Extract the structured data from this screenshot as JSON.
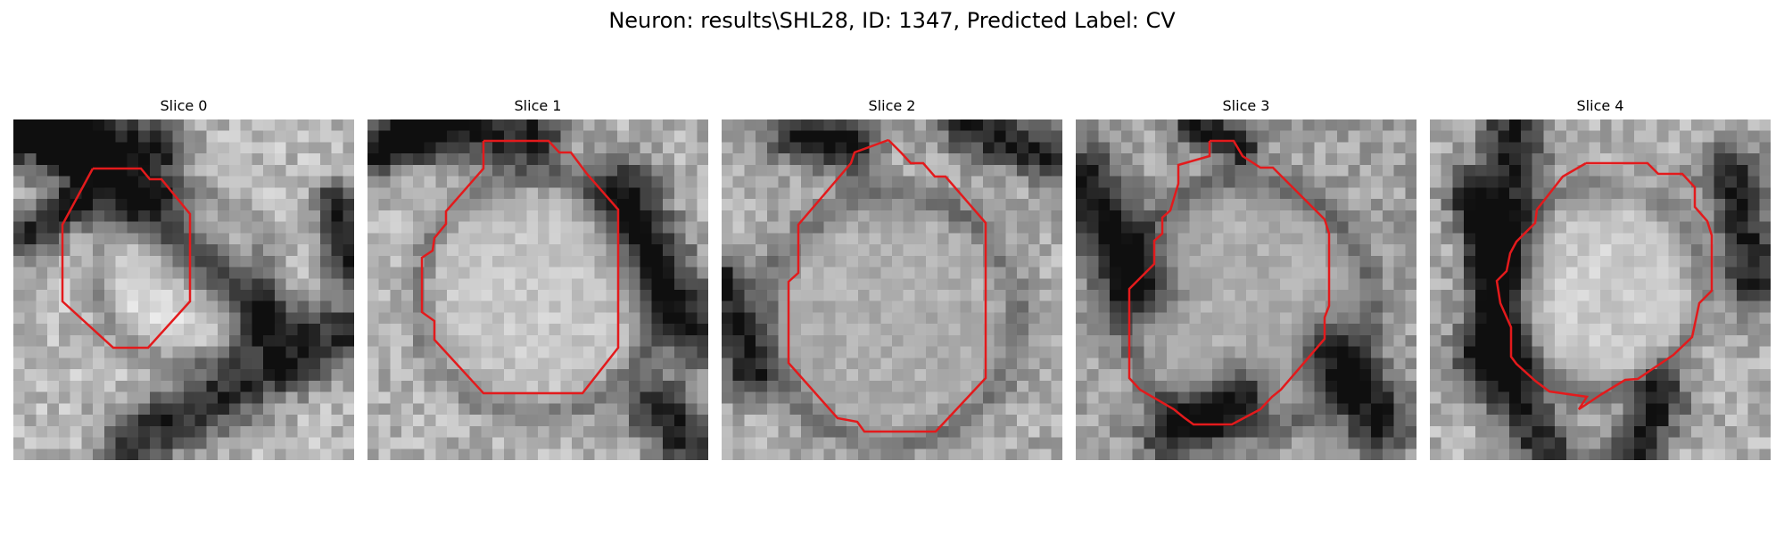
{
  "figure": {
    "title": "Neuron: results\\SHL28, ID: 1347, Predicted Label: CV"
  },
  "panels": [
    {
      "title": "Slice 0"
    },
    {
      "title": "Slice 1"
    },
    {
      "title": "Slice 2"
    },
    {
      "title": "Slice 3"
    },
    {
      "title": "Slice 4"
    }
  ],
  "colors": {
    "contour": "#e31a1c",
    "background": "#ffffff"
  }
}
